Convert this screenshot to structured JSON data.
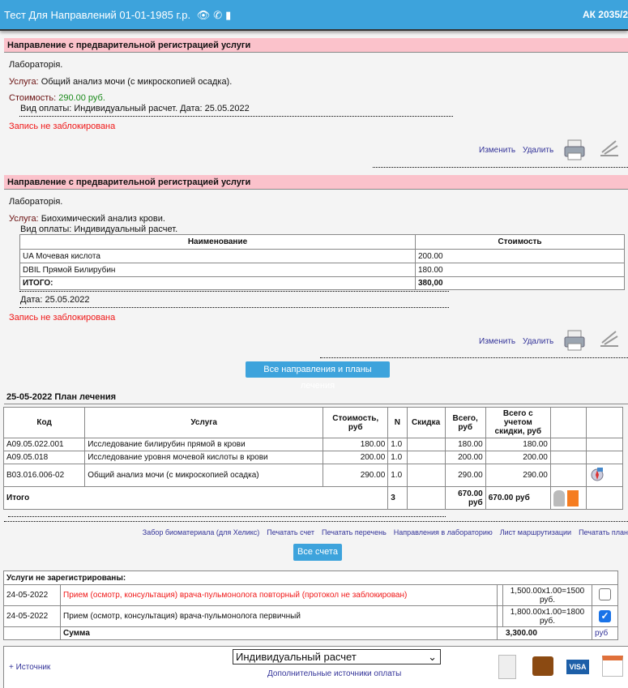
{
  "header": {
    "title": "Тест Для Направлений 01-01-1985 г.р.",
    "right": "АК 2035/2"
  },
  "referrals": [
    {
      "title": "Направление с предварительной регистрацией услуги",
      "lab": "Лабораторія.",
      "service_label": "Услуга:",
      "service": "Общий анализ мочи (с микроскопией осадка).",
      "cost_label": "Стоимость:",
      "cost": "290.00 руб.",
      "payment": "Вид оплаты: Индивидуальный расчет. Дата: 25.05.2022",
      "status": "Запись не заблокирована",
      "edit": "Изменить",
      "delete": "Удалить"
    },
    {
      "title": "Направление с предварительной регистрацией услуги",
      "lab": "Лабораторія.",
      "service_label": "Услуга:",
      "service": "Биохимический анализ крови.",
      "payment": "Вид оплаты: Индивидуальный расчет.",
      "table": {
        "headers": [
          "Наименование",
          "Стоимость"
        ],
        "rows": [
          [
            "UA Мочевая кислота",
            "200.00"
          ],
          [
            "DBIL Прямой Билирубин",
            "180.00"
          ]
        ],
        "total_label": "ИТОГО:",
        "total": "380,00"
      },
      "date": "Дата: 25.05.2022",
      "status": "Запись не заблокирована",
      "edit": "Изменить",
      "delete": "Удалить"
    }
  ],
  "all_referrals_button": "Все направления и планы лечения",
  "plan": {
    "title": "25-05-2022 План лечения",
    "headers": [
      "Код",
      "Услуга",
      "Стоимость, руб",
      "N",
      "Скидка",
      "Всего, руб",
      "Всего с учетом скидки, руб"
    ],
    "rows": [
      [
        "A09.05.022.001",
        "Исследование билирубин прямой в крови",
        "180.00",
        "1.0",
        "",
        "180.00",
        "180.00"
      ],
      [
        "A09.05.018",
        "Исследование уровня мочевой кислоты в крови",
        "200.00",
        "1.0",
        "",
        "200.00",
        "200.00"
      ],
      [
        "B03.016.006-02",
        "Общий анализ мочи (с микроскопией осадка)",
        "290.00",
        "1.0",
        "",
        "290.00",
        "290.00"
      ]
    ],
    "total": {
      "label": "Итого",
      "n": "3",
      "sum": "670.00 руб",
      "sum_discount": "670.00 руб"
    }
  },
  "links": [
    "Забор биоматериала (для Хеликс)",
    "Печатать счет",
    "Печатать перечень",
    "Направления в лабораторию",
    "Лист маршрутизации",
    "Печатать план"
  ],
  "all_bills_button": "Все счета",
  "unregistered": {
    "title": "Услуги не зарегистрированы:",
    "rows": [
      {
        "date": "24-05-2022",
        "service": "Прием (осмотр, консультация) врача-пульмонолога повторный (протокол не заблокирован)",
        "calc": "1,500.00x1.00=1500 руб.",
        "checked": false,
        "red": true
      },
      {
        "date": "24-05-2022",
        "service": "Прием (осмотр, консультация) врача-пульмонолога первичный",
        "calc": "1,800.00x1.00=1800 руб.",
        "checked": true,
        "red": false
      }
    ],
    "sum_label": "Сумма",
    "sum": "3,300.00",
    "currency": "руб"
  },
  "payment": {
    "add_source": "+ Источник",
    "selected": "Индивидуальный расчет",
    "extra_sources": "Дополнительные источники оплаты"
  },
  "colors": {
    "header": "#3da3dc",
    "section": "#fbc2cb",
    "accent": "#3da3dc"
  }
}
